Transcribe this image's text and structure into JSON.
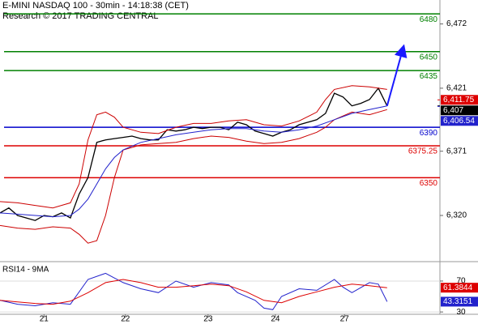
{
  "chart_data": {
    "type": "line",
    "title": "E-MINI NASDAQ 100 - 30min - 14:18:38 (CET)",
    "subtitle": "Research © 2017 TRADING CENTRAL",
    "xlim": [
      0,
      100
    ],
    "xticks": [
      {
        "value": 10,
        "label": "21"
      },
      {
        "value": 28.5,
        "label": "22"
      },
      {
        "value": 47.3,
        "label": "23"
      },
      {
        "value": 62.6,
        "label": "24"
      },
      {
        "value": 78.3,
        "label": "27"
      }
    ],
    "ylim": [
      6284,
      6491
    ],
    "yticks": [
      {
        "value": 6472,
        "label": "6,472"
      },
      {
        "value": 6421,
        "label": "6,421"
      },
      {
        "value": 6371,
        "label": "6,371"
      },
      {
        "value": 6320,
        "label": "6,320"
      }
    ],
    "series": [
      {
        "color": "#000000",
        "x": [
          0,
          2,
          4,
          6,
          8,
          10,
          12,
          14,
          16,
          18,
          20,
          22,
          24,
          26,
          28,
          30,
          32,
          34,
          36,
          38,
          40,
          42,
          44,
          46,
          48,
          50,
          52,
          54,
          56,
          58,
          60,
          62,
          64,
          66,
          68,
          70,
          72,
          74,
          76,
          78,
          80,
          82,
          84,
          86,
          88
        ],
        "values": [
          6322,
          6326,
          6320,
          6318,
          6316,
          6320,
          6319,
          6322,
          6318,
          6337,
          6350,
          6378,
          6380,
          6381,
          6382,
          6383,
          6381,
          6380,
          6380,
          6388,
          6387,
          6388,
          6390,
          6389,
          6390,
          6390,
          6388,
          6394,
          6392,
          6387,
          6385,
          6383,
          6386,
          6388,
          6392,
          6394,
          6396,
          6401,
          6417,
          6414,
          6407,
          6409,
          6412,
          6421,
          6407
        ]
      },
      {
        "color": "#cc0000",
        "x": [
          0,
          4,
          8,
          12,
          16,
          18,
          20,
          22,
          24,
          26,
          28,
          32,
          36,
          40,
          44,
          48,
          52,
          56,
          60,
          64,
          68,
          72,
          74,
          76,
          80,
          84,
          88
        ],
        "values": [
          6331,
          6330,
          6328,
          6326,
          6330,
          6345,
          6380,
          6400,
          6402,
          6398,
          6390,
          6386,
          6385,
          6390,
          6393,
          6393,
          6395,
          6396,
          6392,
          6391,
          6395,
          6402,
          6412,
          6420,
          6423,
          6422,
          6420
        ]
      },
      {
        "color": "#cc0000",
        "x": [
          0,
          4,
          8,
          12,
          16,
          18,
          20,
          22,
          24,
          26,
          28,
          32,
          36,
          40,
          44,
          48,
          52,
          56,
          60,
          64,
          68,
          72,
          74,
          76,
          80,
          84,
          88
        ],
        "values": [
          6312,
          6310,
          6309,
          6311,
          6310,
          6305,
          6298,
          6300,
          6320,
          6350,
          6372,
          6376,
          6377,
          6378,
          6381,
          6383,
          6382,
          6379,
          6377,
          6378,
          6381,
          6386,
          6390,
          6396,
          6402,
          6400,
          6404
        ]
      },
      {
        "color": "#2222cc",
        "x": [
          0,
          4,
          8,
          12,
          16,
          18,
          20,
          22,
          24,
          26,
          28,
          32,
          36,
          40,
          44,
          48,
          52,
          56,
          60,
          64,
          68,
          72,
          76,
          80,
          84,
          88
        ],
        "values": [
          6322,
          6321,
          6320,
          6319,
          6320,
          6325,
          6333,
          6345,
          6357,
          6366,
          6372,
          6378,
          6381,
          6384,
          6386,
          6388,
          6389,
          6389,
          6387,
          6386,
          6388,
          6391,
          6396,
          6401,
          6404,
          6407
        ]
      }
    ],
    "levels": [
      {
        "value": 6480,
        "color": "#008000"
      },
      {
        "value": 6450,
        "color": "#008000"
      },
      {
        "value": 6435,
        "color": "#008000"
      },
      {
        "value": 6390,
        "color": "#0000cc"
      },
      {
        "value": 6375.25,
        "color": "#dd0000"
      },
      {
        "value": 6350,
        "color": "#dd0000"
      }
    ],
    "arrow": {
      "color": "#1a1aff",
      "x": [
        88,
        91.5
      ],
      "values": [
        6407,
        6451
      ]
    },
    "price_tags": [
      {
        "value": 6411.75,
        "label": "6,411.75",
        "color": "#dd0000"
      },
      {
        "value": 6407,
        "label": "6,407",
        "color": "#000000"
      },
      {
        "value": 6406.54,
        "label": "6,406.54",
        "color": "#2222cc"
      }
    ],
    "rsi": {
      "label": "RSI14 - 9MA",
      "ylim": [
        27,
        93
      ],
      "yticks": [
        70,
        30
      ],
      "series": [
        {
          "color": "#2222cc",
          "x": [
            0,
            4,
            8,
            12,
            16,
            20,
            24,
            28,
            32,
            36,
            40,
            44,
            48,
            52,
            54,
            58,
            60,
            62,
            64,
            68,
            72,
            76,
            78,
            80,
            84,
            86,
            88
          ],
          "values": [
            45,
            40,
            38,
            42,
            40,
            72,
            80,
            68,
            60,
            55,
            70,
            62,
            68,
            65,
            55,
            45,
            35,
            33,
            50,
            60,
            58,
            72,
            62,
            55,
            68,
            66,
            43.3151
          ]
        },
        {
          "color": "#dd0000",
          "x": [
            0,
            4,
            8,
            12,
            16,
            20,
            24,
            28,
            32,
            36,
            40,
            44,
            48,
            52,
            56,
            60,
            64,
            68,
            72,
            76,
            80,
            84,
            88
          ],
          "values": [
            45,
            43,
            41,
            40,
            44,
            55,
            68,
            72,
            68,
            62,
            62,
            64,
            66,
            64,
            56,
            45,
            42,
            50,
            56,
            62,
            66,
            64,
            61.3844
          ]
        }
      ],
      "tags": [
        {
          "value": 61.3844,
          "color": "#dd0000"
        },
        {
          "value": 43.3151,
          "color": "#2222cc"
        }
      ]
    }
  }
}
